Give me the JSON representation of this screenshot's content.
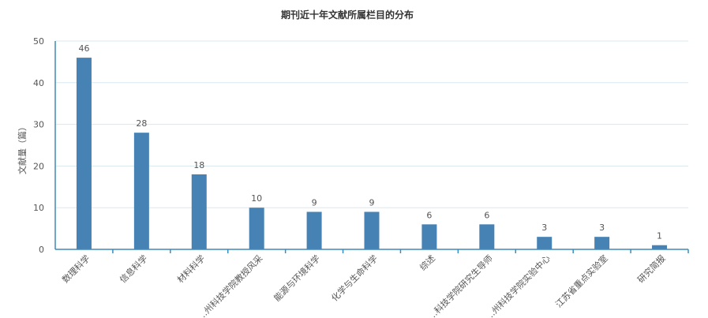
{
  "chart_data": {
    "type": "bar",
    "title": "期刊近十年文献所属栏目的分布",
    "ylabel": "文献量（篇）",
    "xlabel": "",
    "ylim": [
      0,
      50
    ],
    "yticks": [
      0,
      10,
      20,
      30,
      40,
      50
    ],
    "grid": true,
    "categories": [
      "数理科学",
      "信息科学",
      "材料科学",
      "…州科技学院教授风采",
      "能源与环境科学",
      "化学与生命科学",
      "综述",
      "…科技学院研究生导师",
      "…州科技学院实验中心",
      "江苏省重点实验室",
      "研究简报"
    ],
    "values": [
      46,
      28,
      18,
      10,
      9,
      9,
      6,
      6,
      3,
      3,
      1
    ],
    "colors": {
      "bar": "#4682b4",
      "axis": "#3e8ab8",
      "grid": "#d8e8ef"
    }
  }
}
